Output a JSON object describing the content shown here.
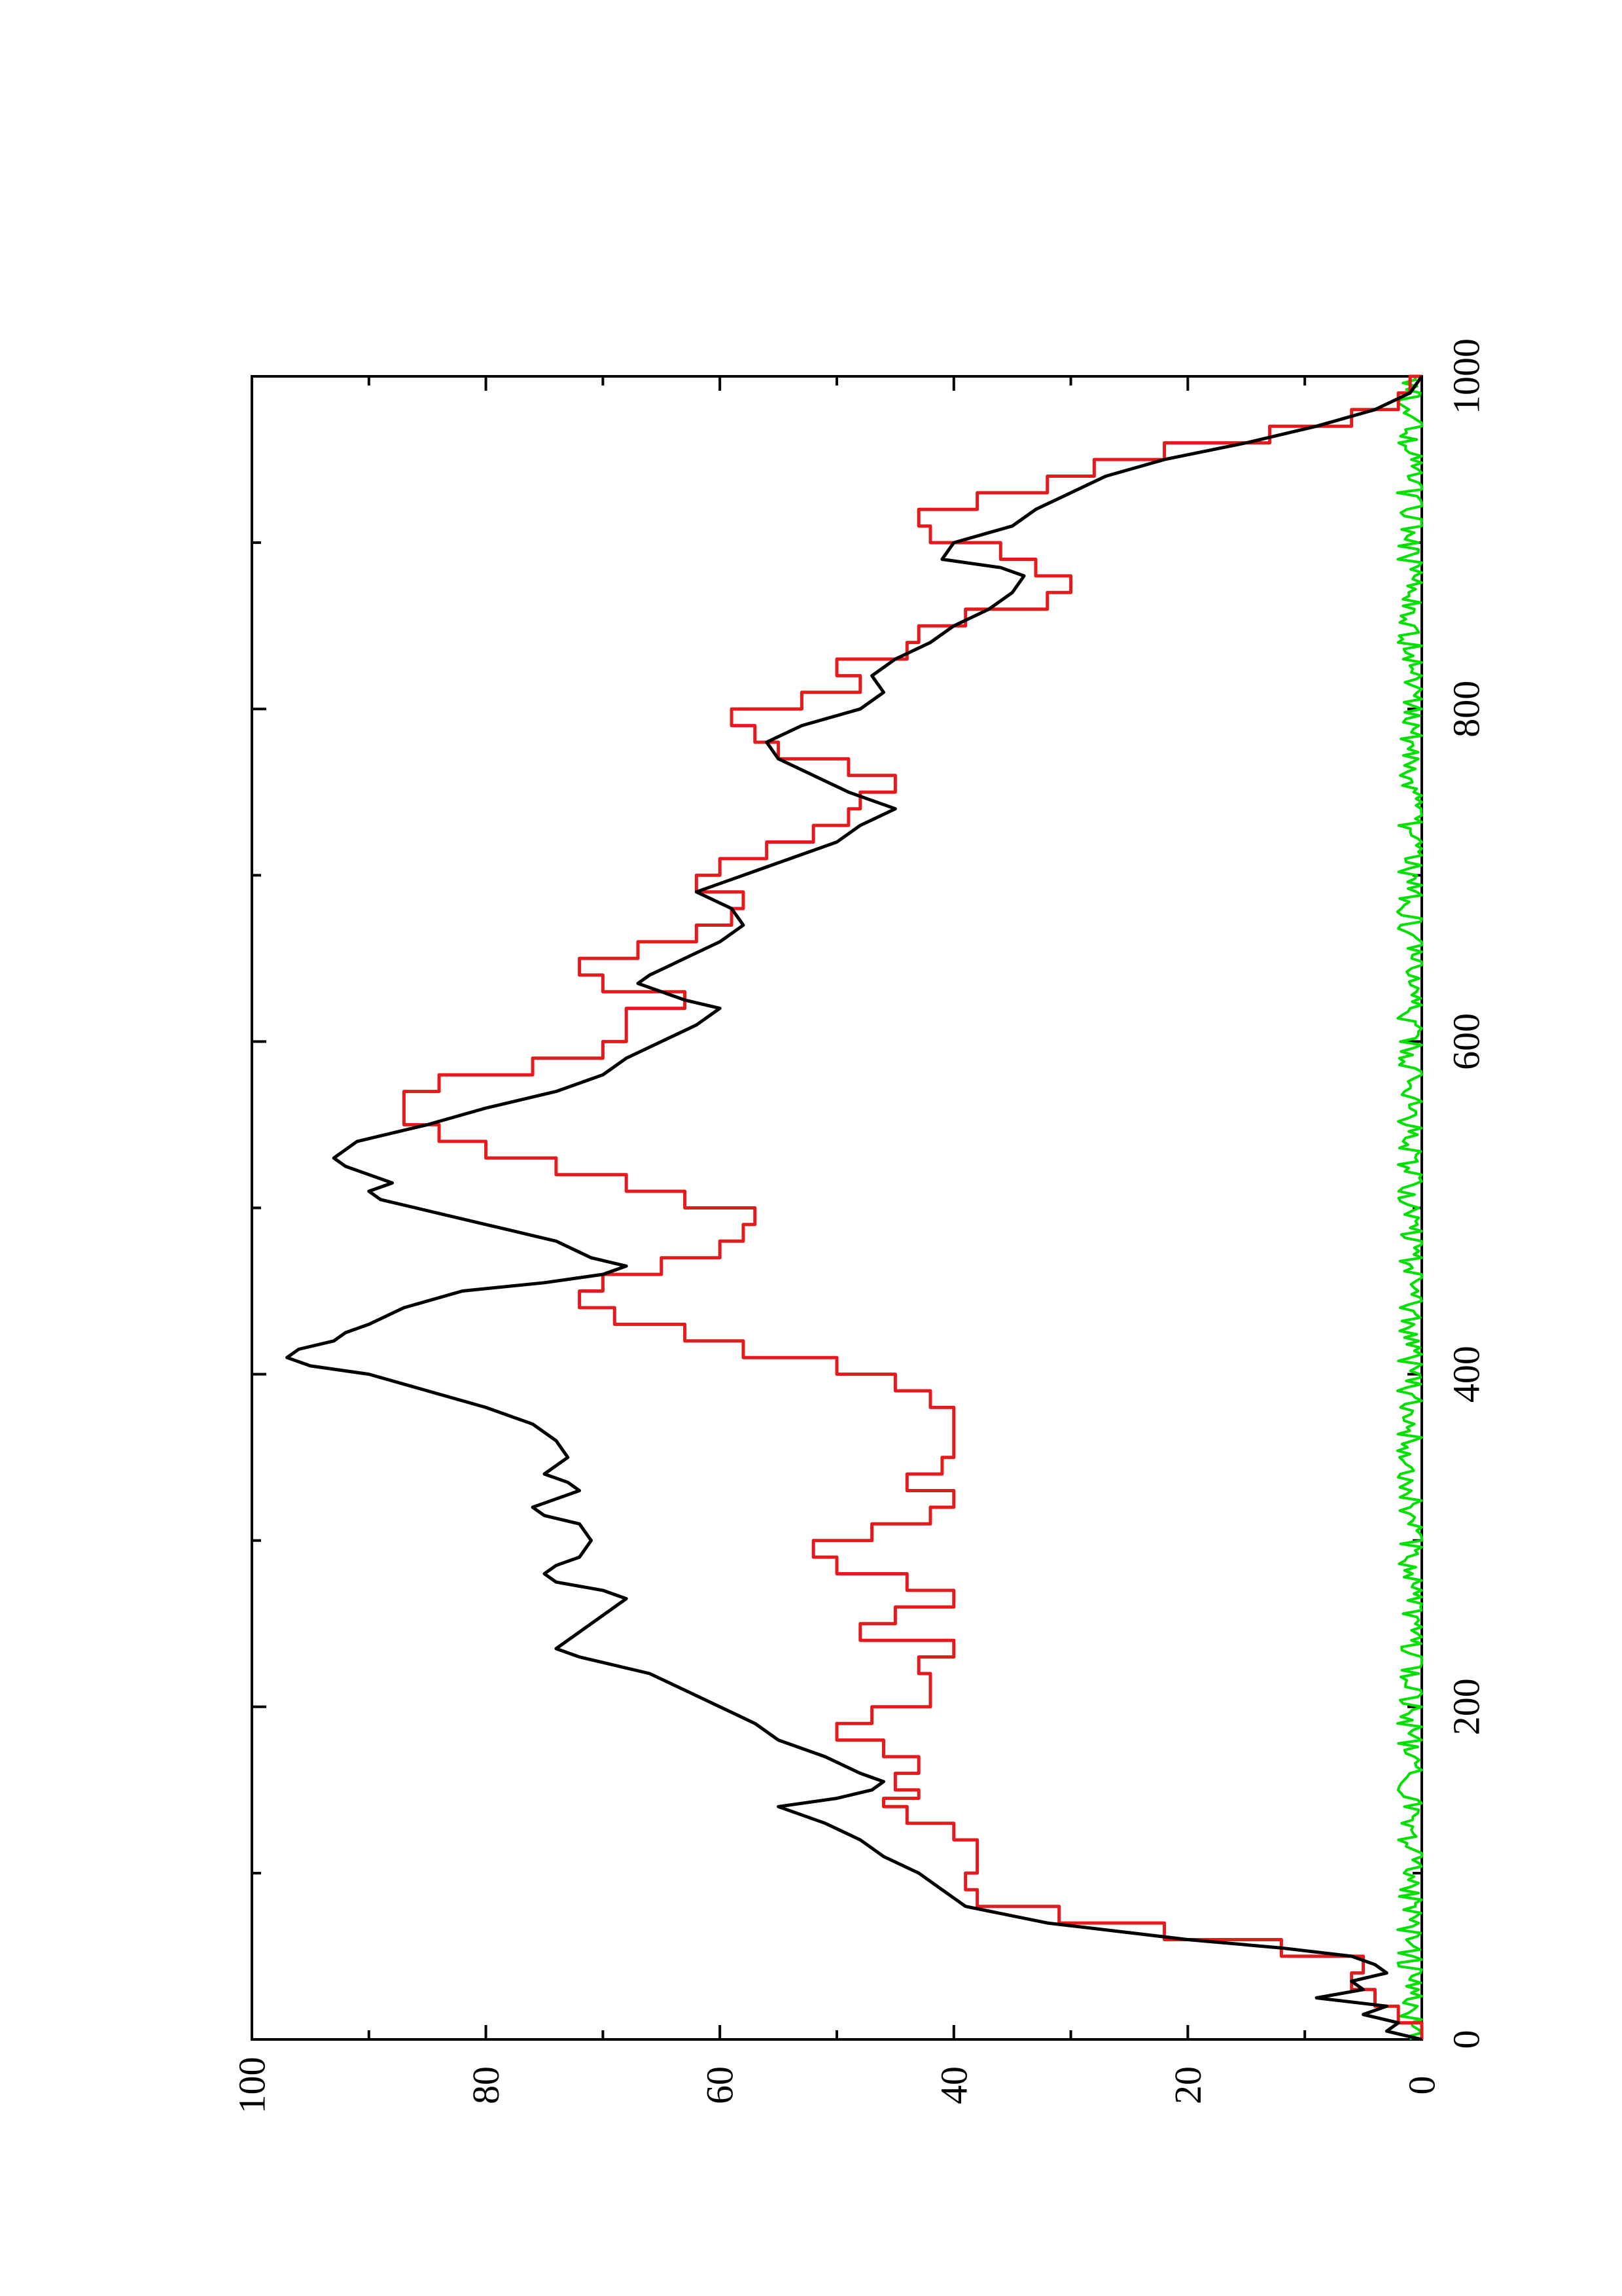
{
  "chart_data": {
    "type": "line",
    "orientation": "rotated-90-ccw",
    "title": "",
    "xlabel": "",
    "ylabel": "",
    "xlim": [
      0,
      1000
    ],
    "ylim": [
      0,
      100
    ],
    "x_ticks": [
      0,
      200,
      400,
      600,
      800,
      1000
    ],
    "x_tick_labels": [
      "0",
      "200",
      "400",
      "600",
      "800",
      "1000"
    ],
    "y_ticks": [
      0,
      20,
      40,
      60,
      80,
      100
    ],
    "y_tick_labels": [
      "0",
      "20",
      "40",
      "60",
      "80",
      "100"
    ],
    "grid": false,
    "legend": "none",
    "colors": {
      "black_series": "#000000",
      "red_series": "#e41a1c",
      "green_series": "#00e000"
    },
    "series": [
      {
        "color": "#000000",
        "x": [
          0,
          5,
          10,
          15,
          20,
          25,
          30,
          35,
          40,
          45,
          50,
          55,
          60,
          70,
          80,
          85,
          90,
          100,
          110,
          120,
          130,
          140,
          145,
          150,
          155,
          160,
          170,
          180,
          190,
          200,
          210,
          220,
          230,
          235,
          240,
          250,
          260,
          265,
          270,
          275,
          280,
          285,
          290,
          300,
          310,
          315,
          320,
          325,
          330,
          335,
          340,
          350,
          360,
          370,
          380,
          390,
          400,
          405,
          410,
          415,
          420,
          425,
          430,
          440,
          450,
          455,
          460,
          465,
          470,
          480,
          490,
          500,
          505,
          510,
          515,
          520,
          525,
          530,
          540,
          550,
          560,
          570,
          580,
          590,
          600,
          610,
          620,
          625,
          630,
          635,
          640,
          650,
          660,
          670,
          680,
          690,
          700,
          710,
          720,
          730,
          740,
          750,
          760,
          770,
          780,
          790,
          800,
          810,
          820,
          830,
          840,
          850,
          860,
          870,
          880,
          885,
          890,
          900,
          910,
          920,
          930,
          940,
          950,
          960,
          970,
          980,
          990,
          1000
        ],
        "y": [
          0,
          3,
          2,
          5,
          3,
          9,
          5,
          6,
          3,
          4,
          6,
          12,
          20,
          32,
          39,
          40,
          41,
          43,
          46,
          48,
          51,
          55,
          50,
          47,
          46,
          48,
          51,
          55,
          57,
          60,
          63,
          66,
          72,
          74,
          73,
          71,
          69,
          68,
          70,
          74,
          75,
          74,
          72,
          71,
          72,
          75,
          76,
          74,
          72,
          73,
          75,
          73,
          74,
          76,
          80,
          85,
          90,
          95,
          97,
          96,
          93,
          92,
          90,
          87,
          82,
          75,
          70,
          68,
          71,
          74,
          80,
          86,
          89,
          90,
          88,
          90,
          92,
          93,
          91,
          85,
          80,
          74,
          70,
          68,
          65,
          62,
          60,
          63,
          65,
          67,
          66,
          63,
          60,
          58,
          59,
          62,
          58,
          54,
          50,
          48,
          45,
          49,
          52,
          55,
          56,
          53,
          48,
          46,
          47,
          45,
          42,
          40,
          37,
          35,
          34,
          36,
          41,
          40,
          35,
          33,
          30,
          27,
          22,
          15,
          9,
          4,
          1,
          0
        ]
      },
      {
        "color": "#e41a1c",
        "x": [
          0,
          10,
          20,
          30,
          40,
          50,
          60,
          70,
          80,
          90,
          100,
          110,
          120,
          130,
          140,
          145,
          150,
          160,
          170,
          180,
          190,
          200,
          210,
          220,
          230,
          240,
          250,
          260,
          270,
          280,
          290,
          300,
          310,
          320,
          330,
          340,
          350,
          360,
          370,
          380,
          390,
          400,
          410,
          420,
          430,
          440,
          450,
          460,
          470,
          480,
          490,
          500,
          510,
          520,
          530,
          540,
          550,
          560,
          570,
          580,
          590,
          600,
          610,
          620,
          630,
          640,
          650,
          660,
          670,
          680,
          690,
          700,
          710,
          720,
          730,
          740,
          750,
          760,
          770,
          780,
          790,
          800,
          810,
          820,
          830,
          840,
          850,
          860,
          870,
          880,
          890,
          900,
          910,
          920,
          930,
          940,
          950,
          960,
          970,
          980,
          990,
          1000
        ],
        "y": [
          0,
          2,
          4,
          6,
          5,
          12,
          22,
          31,
          38,
          39,
          38,
          38,
          40,
          44,
          46,
          43,
          45,
          43,
          46,
          50,
          47,
          42,
          42,
          43,
          40,
          48,
          45,
          40,
          44,
          50,
          52,
          47,
          42,
          40,
          44,
          41,
          40,
          40,
          40,
          42,
          45,
          50,
          58,
          63,
          69,
          72,
          70,
          65,
          60,
          58,
          57,
          63,
          68,
          74,
          80,
          84,
          87,
          87,
          84,
          76,
          70,
          68,
          68,
          63,
          70,
          72,
          67,
          62,
          59,
          58,
          62,
          60,
          56,
          52,
          49,
          48,
          45,
          49,
          55,
          57,
          59,
          53,
          48,
          50,
          44,
          43,
          39,
          32,
          30,
          33,
          36,
          42,
          43,
          38,
          32,
          28,
          22,
          13,
          6,
          2,
          1,
          0
        ]
      },
      {
        "color": "#00e000",
        "x": [
          0,
          1000
        ],
        "y": [
          1,
          1
        ]
      }
    ]
  }
}
